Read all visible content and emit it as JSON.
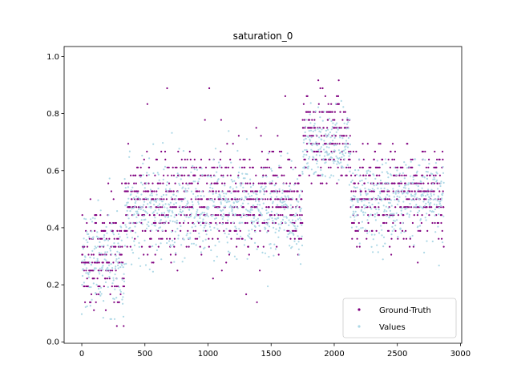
{
  "chart_data": {
    "type": "scatter",
    "title": "saturation_0",
    "xlabel": "",
    "ylabel": "",
    "xlim": [
      -140,
      3010
    ],
    "ylim": [
      -0.005,
      1.035
    ],
    "x_ticks": [
      0,
      500,
      1000,
      1500,
      2000,
      2500,
      3000
    ],
    "y_ticks": [
      0.0,
      0.2,
      0.4,
      0.6,
      0.8,
      1.0
    ],
    "x_tick_labels": [
      "0",
      "500",
      "1000",
      "1500",
      "2000",
      "2500",
      "3000"
    ],
    "y_tick_labels": [
      "0.0",
      "0.2",
      "0.4",
      "0.6",
      "0.8",
      "1.0"
    ],
    "grid": false,
    "legend_position": "bottom-right",
    "n_points": 2880,
    "series": [
      {
        "name": "Ground-Truth",
        "color": "#800080",
        "segments": [
          {
            "x_range": [
              0,
              340
            ],
            "y_center": 0.3,
            "y_spread": 0.1,
            "y_min": 0.04,
            "y_max": 0.69
          },
          {
            "x_range": [
              340,
              1750
            ],
            "y_center": 0.49,
            "y_spread": 0.09,
            "y_min": 0.06,
            "y_max": 0.96
          },
          {
            "x_range": [
              1750,
              2130
            ],
            "y_center": 0.72,
            "y_spread": 0.08,
            "y_min": 0.55,
            "y_max": 0.99
          },
          {
            "x_range": [
              2130,
              2870
            ],
            "y_center": 0.52,
            "y_spread": 0.08,
            "y_min": 0.21,
            "y_max": 0.75
          }
        ]
      },
      {
        "name": "Values",
        "color": "#add8e6",
        "segments": [
          {
            "x_range": [
              0,
              340
            ],
            "y_center": 0.28,
            "y_spread": 0.09,
            "y_min": 0.08,
            "y_max": 0.63
          },
          {
            "x_range": [
              340,
              1750
            ],
            "y_center": 0.46,
            "y_spread": 0.08,
            "y_min": 0.17,
            "y_max": 0.78
          },
          {
            "x_range": [
              1750,
              2130
            ],
            "y_center": 0.68,
            "y_spread": 0.06,
            "y_min": 0.55,
            "y_max": 0.86
          },
          {
            "x_range": [
              2130,
              2870
            ],
            "y_center": 0.5,
            "y_spread": 0.07,
            "y_min": 0.22,
            "y_max": 0.64
          }
        ]
      }
    ]
  }
}
